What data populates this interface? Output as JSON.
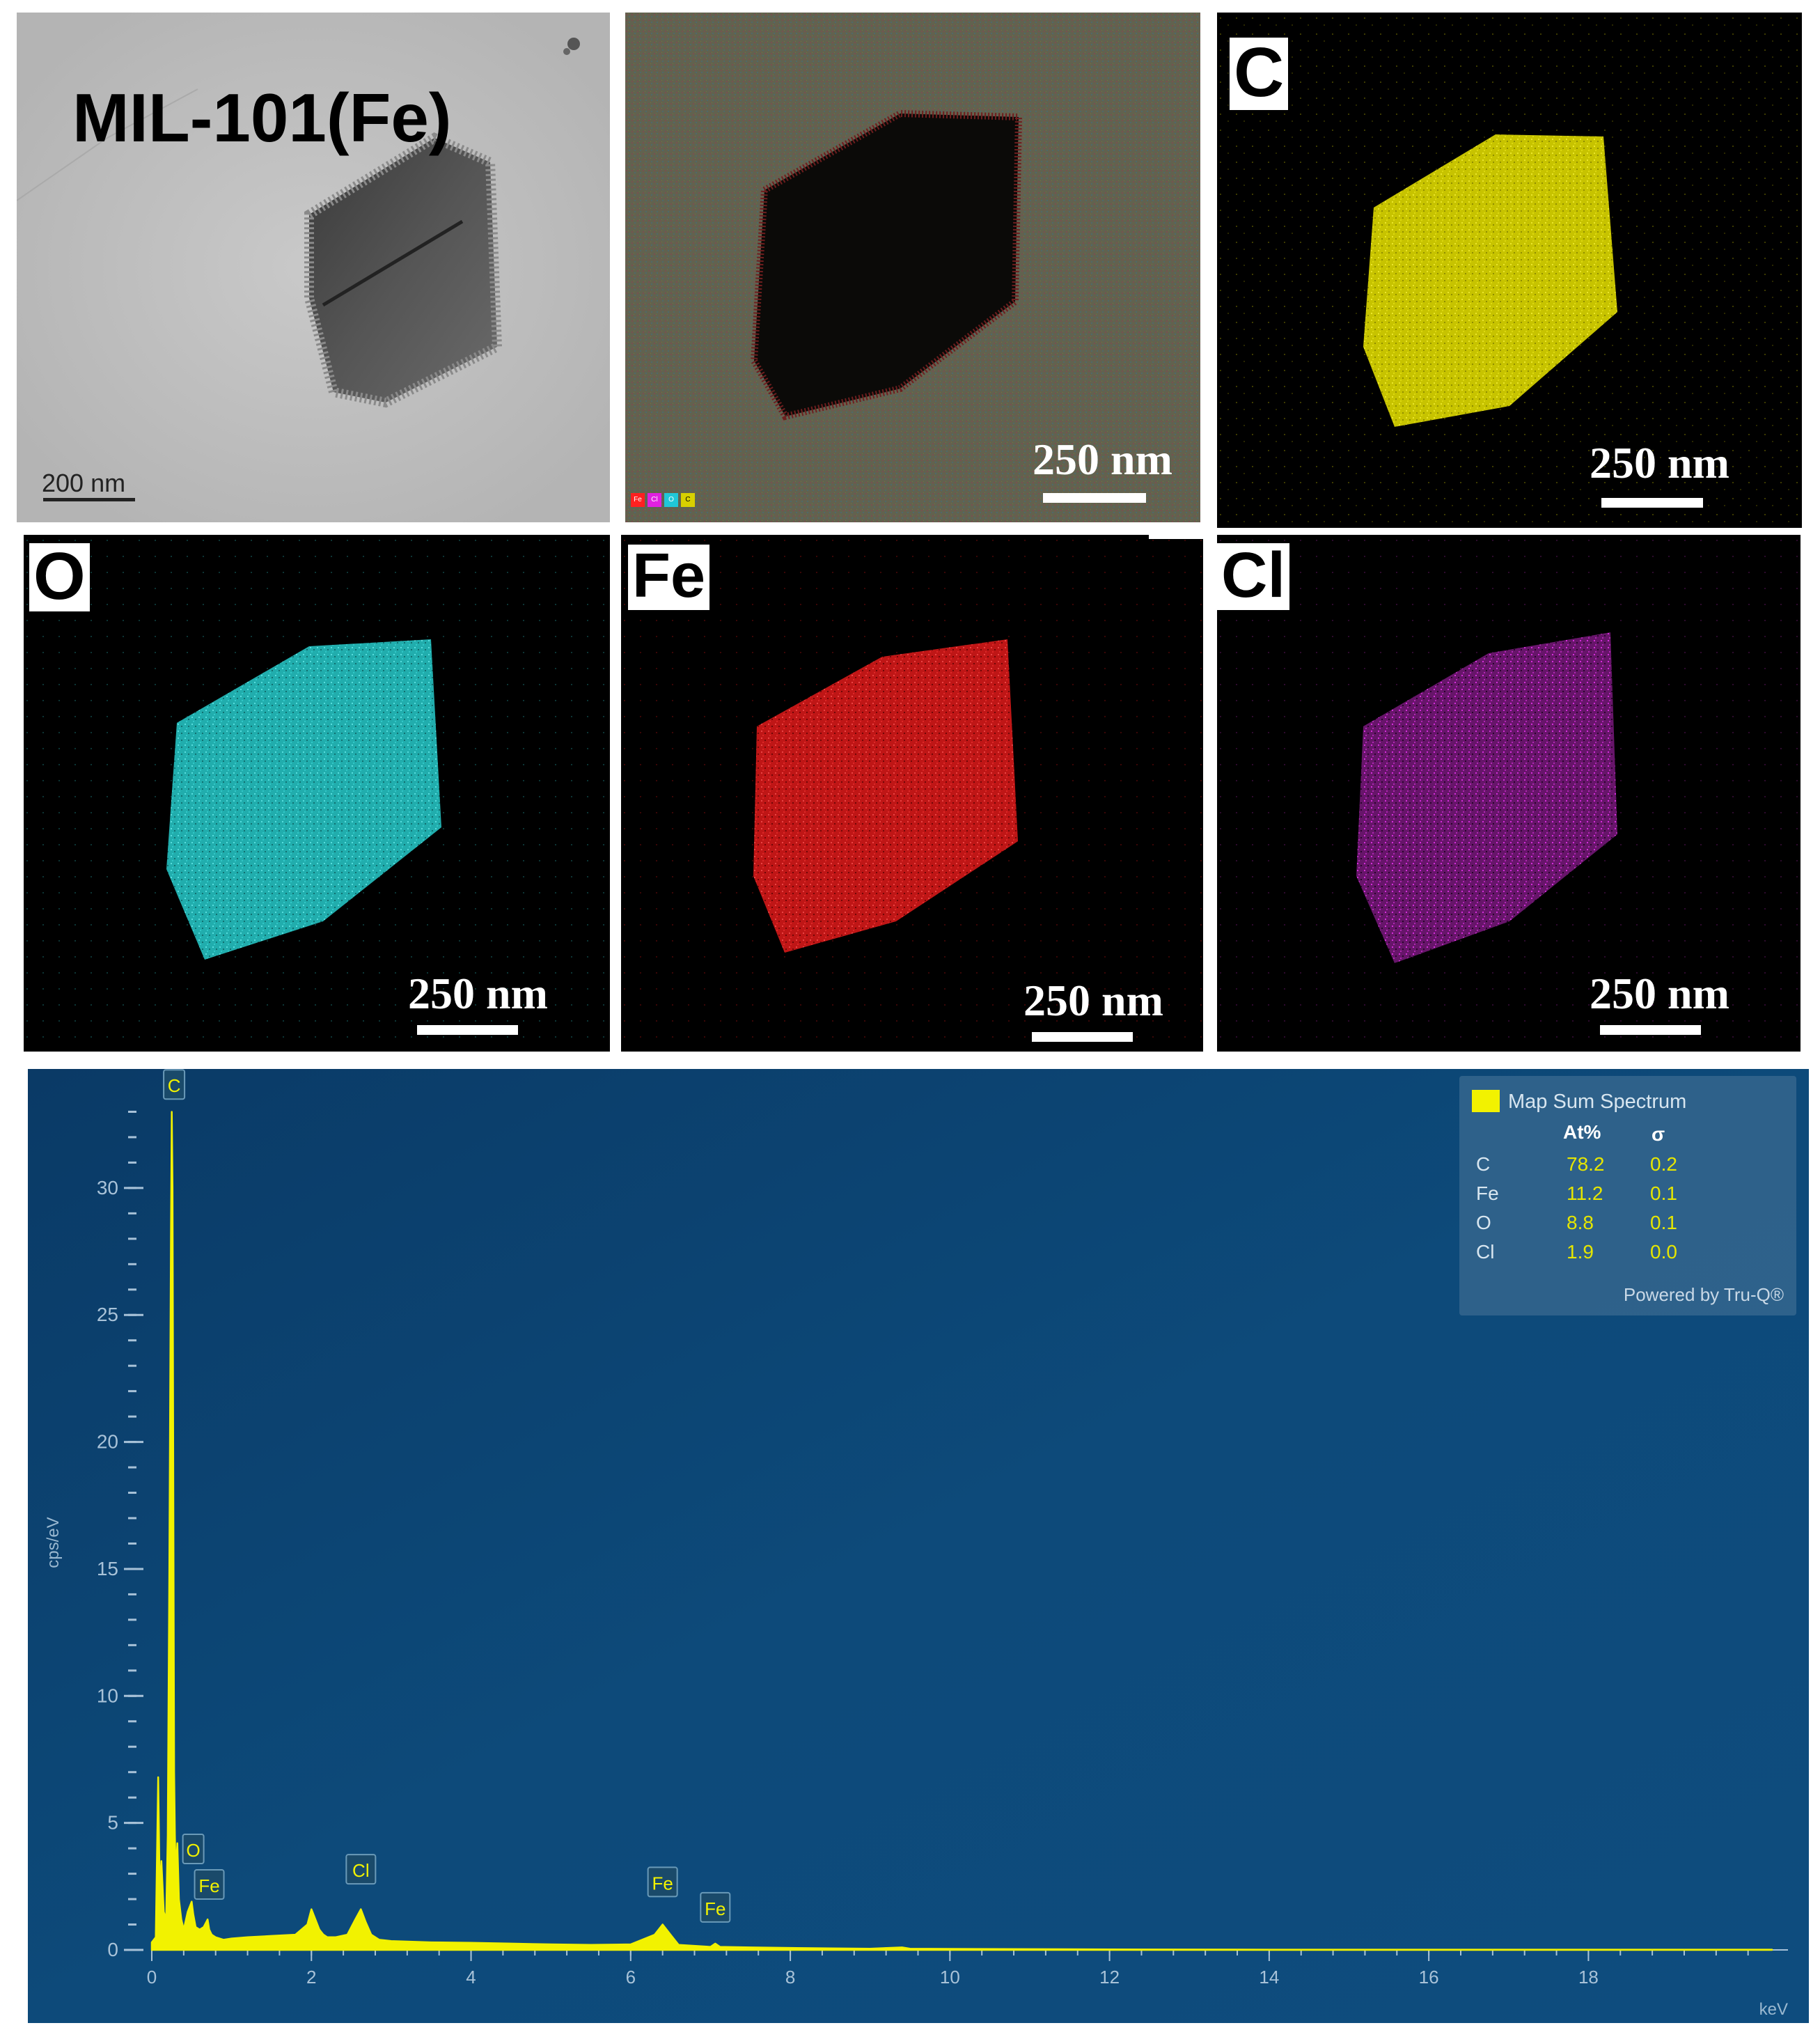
{
  "tem_panel": {
    "title": "MIL-101(Fe)",
    "scale_bar": "200 nm"
  },
  "overlay_panel": {
    "scale_bar": "250 nm",
    "legend": [
      {
        "label": "Fe",
        "color": "#ff2020"
      },
      {
        "label": "Cl",
        "color": "#e020e0"
      },
      {
        "label": "O",
        "color": "#20c8d8"
      },
      {
        "label": "C",
        "color": "#e8e000"
      }
    ]
  },
  "element_maps": [
    {
      "id": "C",
      "label": "C",
      "color": "#e6e200",
      "scale_bar": "250 nm"
    },
    {
      "id": "O",
      "label": "O",
      "color": "#2ad0d0",
      "scale_bar": "250 nm"
    },
    {
      "id": "Fe",
      "label": "Fe",
      "color": "#ee1c1c",
      "scale_bar": "250 nm"
    },
    {
      "id": "Cl",
      "label": "Cl",
      "color": "#cc22cc",
      "scale_bar": "250 nm"
    }
  ],
  "chart_data": {
    "type": "line",
    "title": "",
    "xlabel": "keV",
    "ylabel": "cps/eV",
    "xlim": [
      0,
      20.5
    ],
    "ylim": [
      0,
      34
    ],
    "x_ticks": [
      0,
      2,
      4,
      6,
      8,
      10,
      12,
      14,
      16,
      18
    ],
    "y_ticks": [
      0,
      5,
      10,
      15,
      20,
      25,
      30
    ],
    "grid": false,
    "series": [
      {
        "name": "Map Sum Spectrum",
        "color": "#f2f200",
        "x": [
          0.0,
          0.05,
          0.08,
          0.1,
          0.12,
          0.15,
          0.18,
          0.2,
          0.22,
          0.24,
          0.25,
          0.26,
          0.27,
          0.28,
          0.29,
          0.3,
          0.32,
          0.34,
          0.37,
          0.4,
          0.45,
          0.5,
          0.52,
          0.55,
          0.6,
          0.65,
          0.7,
          0.72,
          0.75,
          0.8,
          0.9,
          1.0,
          1.2,
          1.5,
          1.8,
          1.95,
          2.0,
          2.05,
          2.1,
          2.15,
          2.2,
          2.3,
          2.45,
          2.55,
          2.62,
          2.68,
          2.75,
          2.85,
          3.0,
          3.5,
          4.0,
          4.5,
          5.0,
          5.5,
          6.0,
          6.3,
          6.4,
          6.5,
          6.6,
          7.0,
          7.06,
          7.12,
          7.5,
          8.0,
          8.5,
          9.0,
          9.4,
          9.5,
          10.0,
          11.0,
          12.0,
          14.0,
          16.0,
          18.0,
          20.3
        ],
        "y": [
          0.3,
          0.5,
          6.8,
          2.2,
          3.5,
          1.5,
          1.2,
          4.5,
          15.0,
          28.0,
          33.0,
          30.0,
          17.5,
          7.0,
          4.5,
          3.0,
          4.2,
          2.0,
          1.2,
          0.8,
          1.5,
          1.9,
          1.4,
          0.9,
          0.8,
          0.9,
          1.2,
          0.8,
          0.6,
          0.5,
          0.4,
          0.45,
          0.5,
          0.55,
          0.6,
          1.0,
          1.6,
          1.2,
          0.8,
          0.6,
          0.5,
          0.5,
          0.6,
          1.2,
          1.6,
          1.1,
          0.6,
          0.4,
          0.35,
          0.3,
          0.28,
          0.25,
          0.22,
          0.2,
          0.22,
          0.6,
          1.0,
          0.6,
          0.2,
          0.12,
          0.25,
          0.12,
          0.1,
          0.08,
          0.06,
          0.05,
          0.1,
          0.05,
          0.04,
          0.03,
          0.02,
          0.01,
          0.01,
          0.01,
          0.01
        ]
      }
    ],
    "peak_labels": [
      {
        "text": "C",
        "x": 0.28,
        "y": 33.5
      },
      {
        "text": "O",
        "x": 0.52,
        "y": 3.4
      },
      {
        "text": "Fe",
        "x": 0.72,
        "y": 2.0
      },
      {
        "text": "Cl",
        "x": 2.62,
        "y": 2.6
      },
      {
        "text": "Fe",
        "x": 6.4,
        "y": 2.1
      },
      {
        "text": "Fe",
        "x": 7.06,
        "y": 1.1
      }
    ],
    "quant_table": {
      "title": "Map Sum Spectrum",
      "legend_color": "#f2f200",
      "headers": [
        "",
        "At%",
        "σ"
      ],
      "rows": [
        [
          "C",
          "78.2",
          "0.2"
        ],
        [
          "Fe",
          "11.2",
          "0.1"
        ],
        [
          "O",
          "8.8",
          "0.1"
        ],
        [
          "Cl",
          "1.9",
          "0.0"
        ]
      ],
      "footer": "Powered by Tru-Q®"
    }
  }
}
